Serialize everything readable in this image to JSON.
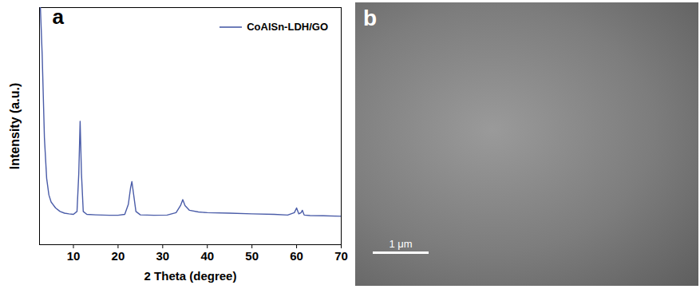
{
  "chart_data": {
    "type": "line",
    "panel_label": "a",
    "xlabel": "2 Theta (degree)",
    "ylabel": "Intensity (a.u.)",
    "x": [
      2.6,
      3.0,
      3.5,
      4,
      4.5,
      5,
      6,
      7,
      8,
      9,
      10,
      10.8,
      11.2,
      11.5,
      11.8,
      12.2,
      13,
      15,
      18,
      20,
      21.5,
      22.3,
      22.8,
      23.1,
      23.5,
      24,
      25,
      28,
      31,
      33,
      34,
      34.5,
      35,
      36,
      38,
      40,
      45,
      50,
      55,
      58,
      59.5,
      60,
      60.5,
      61,
      61.3,
      61.7,
      63,
      66,
      70
    ],
    "series": [
      {
        "name": "CoAlSn-LDH/GO",
        "color": "#4a5ca8",
        "values": [
          100,
          80,
          45,
          28,
          21,
          18,
          15.5,
          14,
          13.3,
          13,
          12.8,
          14,
          30,
          52,
          30,
          14,
          12.8,
          12.6,
          12.4,
          12.4,
          12.8,
          17,
          24,
          26.6,
          21,
          14,
          12.6,
          12.4,
          12.5,
          13.5,
          16.5,
          19,
          16.5,
          14.5,
          13.8,
          13.5,
          13.3,
          13,
          12.8,
          12.5,
          13.5,
          15.5,
          13,
          13.5,
          14.5,
          12.5,
          12.3,
          12.2,
          12
        ]
      }
    ],
    "xlim": [
      2.4,
      70
    ],
    "xticks": [
      10,
      20,
      30,
      40,
      50,
      60,
      70
    ],
    "ylim": [
      0,
      100
    ],
    "yticks": [],
    "tick_labels": "x",
    "legend": "top-right"
  },
  "image": {
    "panel_label": "b",
    "scale_bar_label": "1 μm"
  }
}
